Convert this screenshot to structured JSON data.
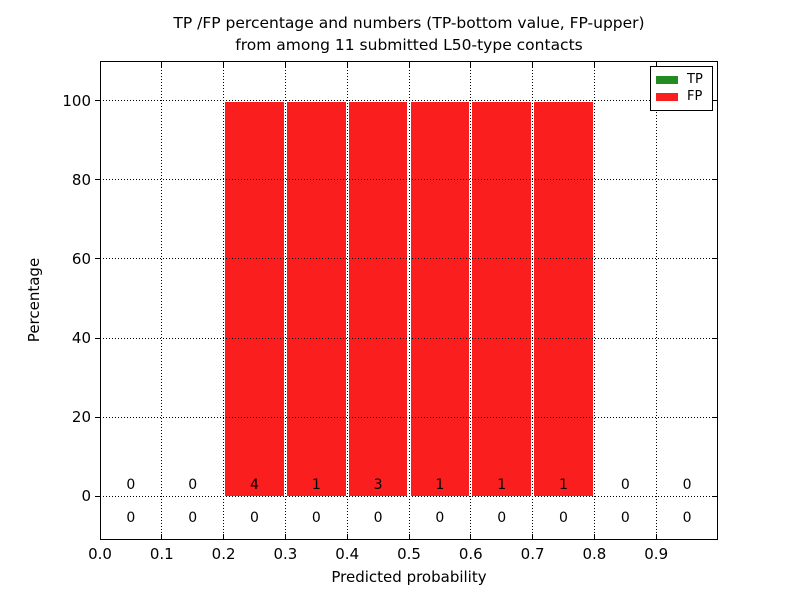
{
  "chart_data": {
    "type": "bar",
    "stacked": true,
    "title_line1": "TP /FP percentage and numbers (TP-bottom value, FP-upper)",
    "title_line2": "from among 11 submitted L50-type contacts",
    "xlabel": "Predicted probability",
    "ylabel": "Percentage",
    "xlim": [
      0.0,
      1.0
    ],
    "ylim": [
      -11,
      110
    ],
    "xticks": [
      0.0,
      0.1,
      0.2,
      0.3,
      0.4,
      0.5,
      0.6,
      0.7,
      0.8,
      0.9
    ],
    "xtick_labels": [
      "0.0",
      "0.1",
      "0.2",
      "0.3",
      "0.4",
      "0.5",
      "0.6",
      "0.7",
      "0.8",
      "0.9"
    ],
    "yticks": [
      0,
      20,
      40,
      60,
      80,
      100
    ],
    "ytick_labels": [
      "0",
      "20",
      "40",
      "60",
      "80",
      "100"
    ],
    "bin_edges": [
      0.0,
      0.1,
      0.2,
      0.3,
      0.4,
      0.5,
      0.6,
      0.7,
      0.8,
      0.9,
      1.0
    ],
    "grid": true,
    "grid_style": "dotted",
    "legend_position": "upper right",
    "series": [
      {
        "name": "TP",
        "color": "#228b22",
        "percent": [
          0,
          0,
          0,
          0,
          0,
          0,
          0,
          0,
          0,
          0
        ],
        "counts": [
          0,
          0,
          0,
          0,
          0,
          0,
          0,
          0,
          0,
          0
        ],
        "count_row": "bottom"
      },
      {
        "name": "FP",
        "color": "#fb1e1e",
        "percent": [
          0,
          0,
          100,
          100,
          100,
          100,
          100,
          100,
          0,
          0
        ],
        "counts": [
          0,
          0,
          4,
          1,
          3,
          1,
          1,
          1,
          0,
          0
        ],
        "count_row": "top"
      }
    ],
    "total_submitted_contacts": 11
  }
}
